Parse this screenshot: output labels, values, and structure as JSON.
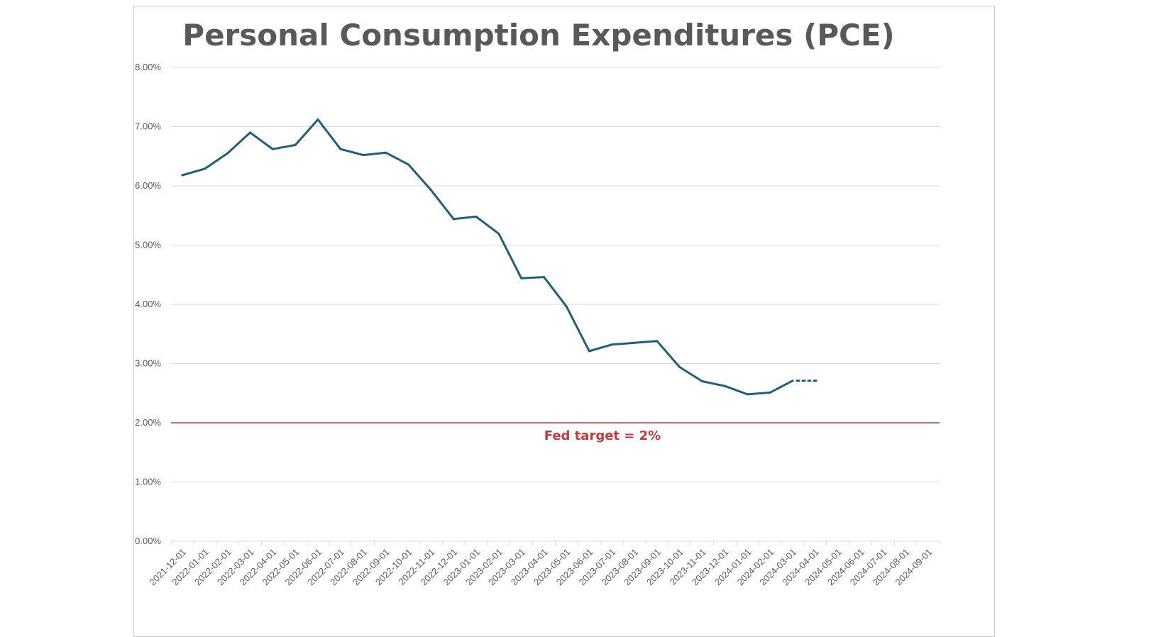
{
  "colors": {
    "series": "#1f5f7a",
    "target": "#c0393b",
    "grid": "#d9d9d9",
    "text": "#595959"
  },
  "chart_data": {
    "type": "line",
    "title": "Personal Consumption Expenditures (PCE)",
    "xlabel": "",
    "ylabel": "",
    "ylim": [
      0,
      0.08
    ],
    "y_ticks": [
      "0.00%",
      "1.00%",
      "2.00%",
      "3.00%",
      "4.00%",
      "5.00%",
      "6.00%",
      "7.00%",
      "8.00%"
    ],
    "y_tick_values": [
      0,
      0.01,
      0.02,
      0.03,
      0.04,
      0.05,
      0.06,
      0.07,
      0.08
    ],
    "grid": true,
    "categories": [
      "2021-12-01",
      "2022-01-01",
      "2022-02-01",
      "2022-03-01",
      "2022-04-01",
      "2022-05-01",
      "2022-06-01",
      "2022-07-01",
      "2022-08-01",
      "2022-09-01",
      "2022-10-01",
      "2022-11-01",
      "2022-12-01",
      "2023-01-01",
      "2023-02-01",
      "2023-03-01",
      "2023-04-01",
      "2023-05-01",
      "2023-06-01",
      "2023-07-01",
      "2023-08-01",
      "2023-09-01",
      "2023-10-01",
      "2023-11-01",
      "2023-12-01",
      "2024-01-01",
      "2024-02-01",
      "2024-03-01",
      "2024-04-01",
      "2024-05-01",
      "2024-06-01",
      "2024-07-01",
      "2024-08-01",
      "2024-09-01"
    ],
    "series": [
      {
        "values": [
          0.0618,
          0.0629,
          0.0655,
          0.069,
          0.0662,
          0.0669,
          0.0712,
          0.0662,
          0.0652,
          0.0656,
          0.0636,
          0.0593,
          0.0544,
          0.0548,
          0.0519,
          0.0444,
          0.0446,
          0.0396,
          0.0321,
          0.0332,
          0.0335,
          0.0338,
          0.0294,
          0.027,
          0.0262,
          0.0248,
          0.0251,
          0.0271,
          null,
          null,
          null,
          null,
          null,
          null
        ]
      }
    ],
    "projection": {
      "from_index": 27,
      "to_index": 28,
      "value": 0.0271,
      "style": "dotted"
    },
    "target_line": {
      "value": 0.02,
      "label": "Fed target = 2%"
    }
  }
}
